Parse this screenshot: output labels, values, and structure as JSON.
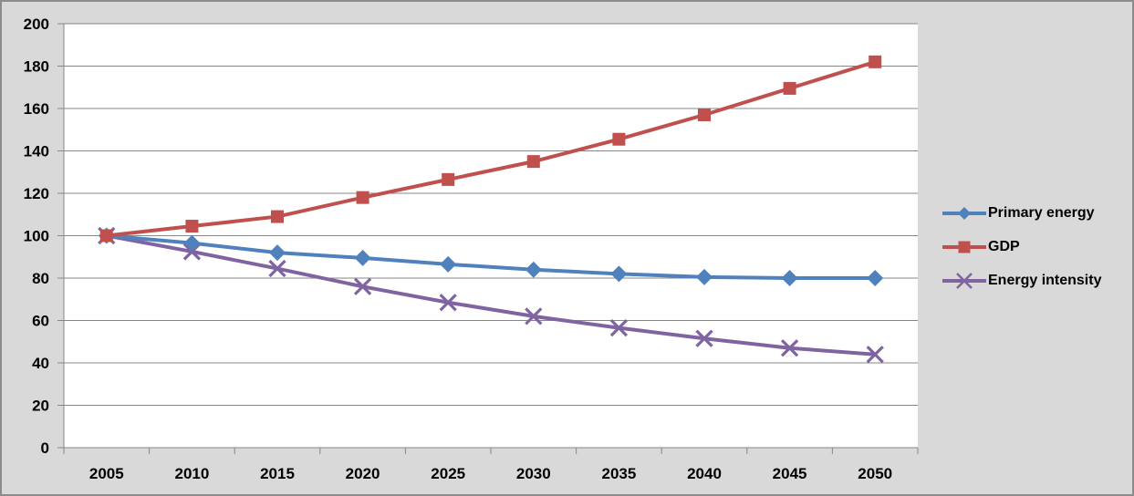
{
  "window": {
    "background_color": "#d9d9d9",
    "border_color": "#8c8c8c",
    "plot_background_color": "#ffffff",
    "gridline_color": "#878787",
    "axis_color": "#878787",
    "text_color": "#000000"
  },
  "chart_data": {
    "type": "line",
    "title": "",
    "categories": [
      "2005",
      "2010",
      "2015",
      "2020",
      "2025",
      "2030",
      "2035",
      "2040",
      "2045",
      "2050"
    ],
    "series": [
      {
        "name": "Primary energy",
        "color": "#4F81BD",
        "marker": "diamond",
        "values": [
          100,
          96.5,
          92,
          89.5,
          86.5,
          84,
          82,
          80.5,
          80,
          80
        ]
      },
      {
        "name": "GDP",
        "color": "#C0504D",
        "marker": "square",
        "values": [
          100,
          104.5,
          109,
          118,
          126.5,
          135,
          145.5,
          157,
          169.5,
          182
        ]
      },
      {
        "name": "Energy intensity",
        "color": "#8064A2",
        "marker": "x",
        "values": [
          100,
          92.5,
          84.5,
          76,
          68.5,
          62,
          56.5,
          51.5,
          47,
          44
        ]
      }
    ],
    "y_axis": {
      "min": 0,
      "max": 200,
      "step": 20,
      "tick_labels": [
        "0",
        "20",
        "40",
        "60",
        "80",
        "100",
        "120",
        "140",
        "160",
        "180",
        "200"
      ]
    },
    "x_axis": {
      "tick_labels": [
        "2005",
        "2010",
        "2015",
        "2020",
        "2025",
        "2030",
        "2035",
        "2040",
        "2045",
        "2050"
      ]
    },
    "legend": {
      "position": "right",
      "entries": [
        "Primary energy",
        "GDP",
        "Energy intensity"
      ]
    },
    "grid": true
  }
}
